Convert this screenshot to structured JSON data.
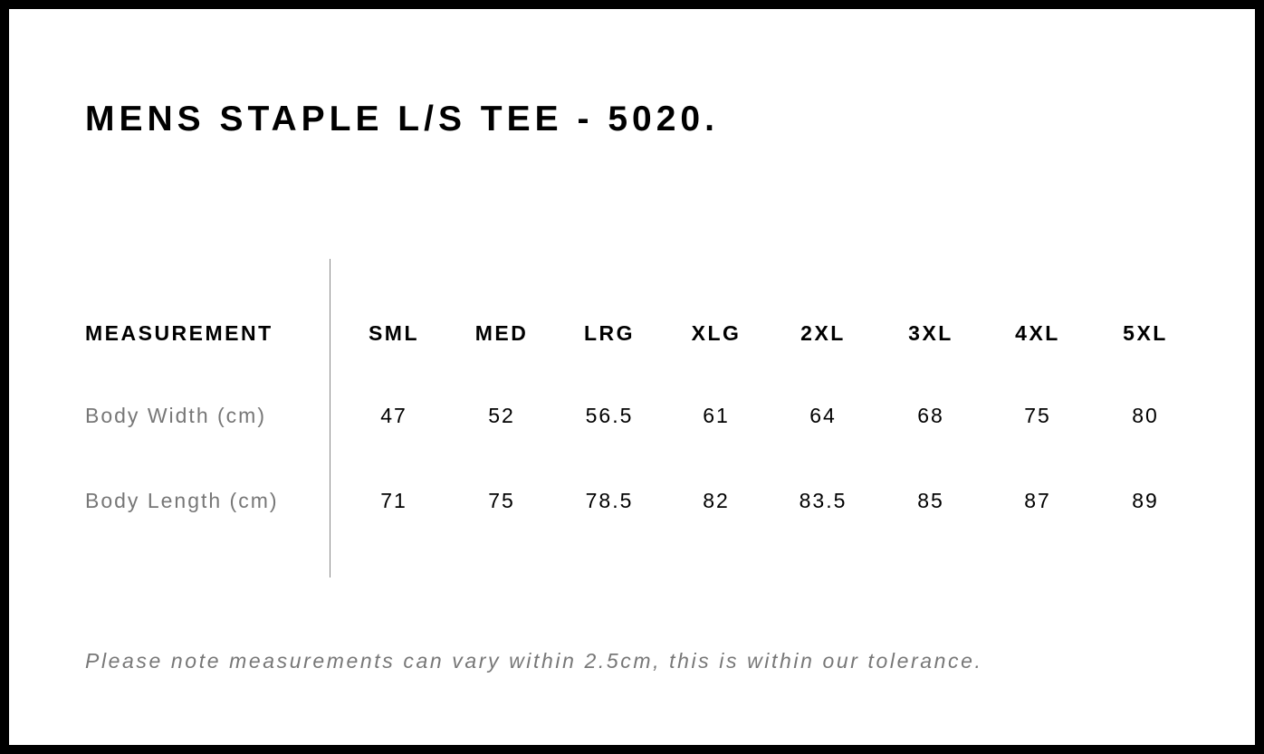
{
  "title": "MENS STAPLE L/S TEE - 5020.",
  "table": {
    "header": "MEASUREMENT",
    "sizes": [
      "SML",
      "MED",
      "LRG",
      "XLG",
      "2XL",
      "3XL",
      "4XL",
      "5XL"
    ],
    "rows": [
      {
        "label": "Body Width (cm)",
        "values": [
          "47",
          "52",
          "56.5",
          "61",
          "64",
          "68",
          "75",
          "80"
        ]
      },
      {
        "label": "Body Length (cm)",
        "values": [
          "71",
          "75",
          "78.5",
          "82",
          "83.5",
          "85",
          "87",
          "89"
        ]
      }
    ]
  },
  "note": "Please note measurements can vary within 2.5cm, this is within our tolerance."
}
